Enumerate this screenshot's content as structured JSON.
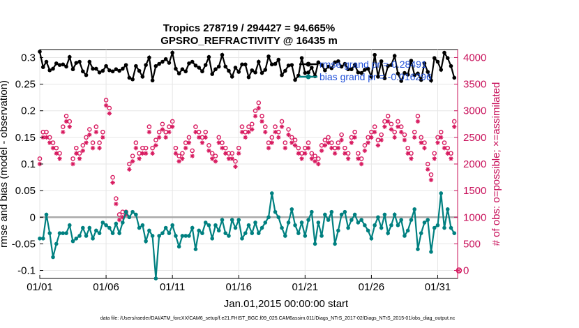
{
  "chart_data": {
    "type": "line",
    "title_line1": "Tropics 278719 / 294427 = 94.665%",
    "title_line2": "GPSRO_REFRACTIVITY @ 16435 m",
    "xlabel": "Jan.01,2015 00:00:00 start",
    "ylabel_left": "rmse and bias (model - observation)",
    "ylabel_right": "# of obs: o=possible; ×=assimilated",
    "footer": "data file: /Users/raeder/DAI/ATM_forcXX/CAM6_setup/f.e21.FHIST_BGC.f09_025.CAM6assim.011/Diags_NTrS_2017-02/Diags_NTrS_2015-01/obs_diag_output.nc",
    "x_range": [
      0,
      31.5
    ],
    "y_left_range": [
      -0.115,
      0.315
    ],
    "y_right_range": [
      -150,
      4150
    ],
    "x_ticks": [
      {
        "value": 0,
        "label": "01/01"
      },
      {
        "value": 5,
        "label": "01/06"
      },
      {
        "value": 10,
        "label": "01/11"
      },
      {
        "value": 15,
        "label": "01/16"
      },
      {
        "value": 20,
        "label": "01/21"
      },
      {
        "value": 25,
        "label": "01/26"
      },
      {
        "value": 30,
        "label": "01/31"
      }
    ],
    "y_left_ticks": [
      {
        "value": -0.1,
        "label": "-0.1"
      },
      {
        "value": -0.05,
        "label": "-0.05"
      },
      {
        "value": 0,
        "label": "0"
      },
      {
        "value": 0.05,
        "label": "0.05"
      },
      {
        "value": 0.1,
        "label": "0.1"
      },
      {
        "value": 0.15,
        "label": "0.15"
      },
      {
        "value": 0.2,
        "label": "0.2"
      },
      {
        "value": 0.25,
        "label": "0.25"
      },
      {
        "value": 0.3,
        "label": "0.3"
      }
    ],
    "y_right_ticks": [
      {
        "value": 0,
        "label": "0"
      },
      {
        "value": 500,
        "label": "500"
      },
      {
        "value": 1000,
        "label": "1000"
      },
      {
        "value": 1500,
        "label": "1500"
      },
      {
        "value": 2000,
        "label": "2000"
      },
      {
        "value": 2500,
        "label": "2500"
      },
      {
        "value": 3000,
        "label": "3000"
      },
      {
        "value": 3500,
        "label": "3500"
      },
      {
        "value": 4000,
        "label": "4000"
      }
    ],
    "colors": {
      "rmse": "#000000",
      "bias": "#008080",
      "obs": "#d81b60",
      "zero": "#aaaaaa",
      "legend_text": "#1f4fd8"
    },
    "series": [
      {
        "name": "rmse grand pr = 0.28491",
        "type": "rmse",
        "values": [
          0.311,
          0.282,
          0.292,
          0.276,
          0.279,
          0.289,
          0.286,
          0.287,
          0.283,
          0.301,
          0.278,
          0.29,
          0.292,
          0.274,
          0.267,
          0.292,
          0.279,
          0.279,
          0.272,
          0.275,
          0.284,
          0.276,
          0.274,
          0.278,
          0.275,
          0.279,
          0.286,
          0.262,
          0.259,
          0.284,
          0.275,
          0.264,
          0.286,
          0.3,
          0.257,
          0.284,
          0.288,
          0.292,
          0.297,
          0.29,
          0.309,
          0.279,
          0.27,
          0.278,
          0.274,
          0.289,
          0.292,
          0.285,
          0.281,
          0.274,
          0.286,
          0.301,
          0.269,
          0.278,
          0.283,
          0.305,
          0.283,
          0.275,
          0.264,
          0.281,
          0.273,
          0.287,
          0.287,
          0.263,
          0.276,
          0.272,
          0.292,
          0.271,
          0.277,
          0.302,
          0.287,
          0.288,
          0.296,
          0.267,
          0.275,
          0.285,
          0.286,
          0.258,
          0.266,
          0.299,
          0.271,
          0.272,
          0.281,
          0.265,
          0.291,
          0.286,
          0.276,
          0.283,
          0.28,
          0.291,
          0.293,
          0.283,
          0.288,
          0.278,
          0.278,
          0.286,
          0.272,
          0.271,
          0.277,
          0.279,
          0.264,
          0.305,
          0.264,
          0.293,
          0.261,
          0.284,
          0.286,
          0.303,
          0.27,
          0.256,
          0.271,
          0.268,
          0.294,
          0.267,
          0.27,
          0.258,
          0.289,
          0.273,
          0.257,
          0.299,
          0.292,
          0.277,
          0.309,
          0.299,
          0.284,
          0.262
        ]
      },
      {
        "name": "bias grand pr = -0.016296",
        "type": "bias",
        "values": [
          -0.04,
          -0.04,
          0.005,
          -0.03,
          -0.075,
          -0.05,
          -0.03,
          -0.03,
          -0.03,
          -0.015,
          -0.045,
          -0.04,
          -0.035,
          -0.02,
          -0.035,
          -0.02,
          -0.04,
          -0.025,
          -0.03,
          -0.01,
          -0.015,
          -0.02,
          -0.03,
          -0.012,
          -0.03,
          -0.01,
          0.01,
          0.0,
          0.01,
          0.005,
          -0.02,
          -0.015,
          -0.045,
          -0.025,
          -0.035,
          -0.115,
          -0.035,
          -0.03,
          -0.02,
          -0.03,
          -0.015,
          -0.035,
          -0.055,
          -0.035,
          -0.035,
          -0.035,
          -0.02,
          -0.06,
          -0.025,
          -0.03,
          -0.01,
          -0.015,
          -0.04,
          -0.015,
          -0.025,
          -0.005,
          -0.03,
          -0.035,
          -0.005,
          -0.02,
          -0.005,
          -0.04,
          -0.03,
          -0.015,
          -0.03,
          -0.01,
          -0.03,
          -0.02,
          -0.01,
          0.0,
          0.045,
          0.01,
          0.0,
          -0.02,
          -0.035,
          -0.01,
          0.015,
          -0.015,
          -0.03,
          -0.01,
          -0.035,
          -0.005,
          0.01,
          -0.05,
          -0.01,
          -0.035,
          0.005,
          -0.005,
          0.01,
          -0.05,
          -0.025,
          0.005,
          0.01,
          -0.02,
          -0.005,
          0.005,
          -0.01,
          -0.005,
          -0.015,
          -0.025,
          -0.04,
          -0.015,
          0.0,
          -0.02,
          0.005,
          -0.03,
          -0.015,
          0.005,
          -0.015,
          -0.005,
          -0.035,
          -0.025,
          -0.005,
          0.015,
          -0.06,
          -0.03,
          -0.01,
          -0.005,
          -0.065,
          -0.02,
          -0.015,
          0.045,
          -0.02,
          0.015,
          -0.02,
          -0.03
        ]
      },
      {
        "name": "possible",
        "type": "obs_possible",
        "values": [
          2100,
          2600,
          2600,
          2500,
          2400,
          2300,
          2200,
          2700,
          2900,
          2800,
          2100,
          2300,
          2200,
          2350,
          2500,
          2650,
          2400,
          2700,
          2400,
          2600,
          3200,
          3050,
          1750,
          1350,
          1050,
          1100,
          1100,
          2000,
          2150,
          2400,
          2200,
          2300,
          2300,
          2700,
          2300,
          2450,
          2600,
          2750,
          2600,
          2700,
          2800,
          2300,
          2150,
          2200,
          2400,
          2500,
          2250,
          2700,
          2600,
          2500,
          2600,
          2350,
          2200,
          2150,
          2500,
          2400,
          2300,
          2200,
          2200,
          2050,
          2300,
          2700,
          2600,
          2700,
          2750,
          3000,
          3150,
          2900,
          2700,
          2400,
          2500,
          2700,
          2600,
          2800,
          2400,
          2650,
          2500,
          2450,
          2300,
          2200,
          2300,
          2400,
          2200,
          2150,
          2100,
          2350,
          2450,
          2500,
          2400,
          2300,
          2400,
          2550,
          2300,
          2200,
          2500,
          2600,
          2200,
          2100,
          2350,
          2500,
          2600,
          2700,
          2450,
          2550,
          2800,
          2900,
          2750,
          2600,
          2800,
          2700,
          2550,
          2300,
          2200,
          2600,
          2900,
          2500,
          2400,
          2000,
          1800,
          2200,
          2500,
          2600,
          2400,
          2300,
          2200,
          2800
        ]
      },
      {
        "name": "assimilated",
        "type": "obs_assim",
        "values": [
          2000,
          2500,
          2500,
          2400,
          2300,
          2200,
          2100,
          2600,
          2800,
          2700,
          2000,
          2200,
          2100,
          2250,
          2400,
          2550,
          2300,
          2600,
          2300,
          2500,
          3100,
          2950,
          1650,
          1250,
          950,
          1000,
          1050,
          1900,
          2050,
          2300,
          2100,
          2200,
          2200,
          2600,
          2200,
          2350,
          2500,
          2650,
          2500,
          2600,
          2700,
          2200,
          2050,
          2100,
          2300,
          2400,
          2150,
          2600,
          2500,
          2400,
          2500,
          2250,
          2100,
          2050,
          2400,
          2300,
          2200,
          2100,
          2100,
          1950,
          2200,
          2600,
          2500,
          2600,
          2650,
          2900,
          3050,
          2800,
          2600,
          2300,
          2400,
          2600,
          2500,
          2700,
          2300,
          2550,
          2400,
          2350,
          2200,
          2100,
          2200,
          2300,
          2100,
          2050,
          2000,
          2250,
          2350,
          2400,
          2300,
          2200,
          2300,
          2450,
          2200,
          2100,
          2400,
          2500,
          2100,
          2000,
          2250,
          2400,
          2500,
          2600,
          2350,
          2450,
          2700,
          2800,
          2650,
          2500,
          2700,
          2600,
          2450,
          2200,
          2100,
          2500,
          2800,
          2400,
          2300,
          1900,
          1700,
          2100,
          2400,
          2500,
          2300,
          2200,
          2100,
          2700
        ]
      }
    ],
    "legend": [
      {
        "label": "rmse grand pr = 0.28491",
        "series": "rmse"
      },
      {
        "label": "bias grand pr = -0.016296",
        "series": "bias"
      }
    ],
    "extra_marker": {
      "label": "0",
      "note": "final possible count",
      "value": 0,
      "x": 31.6
    }
  }
}
